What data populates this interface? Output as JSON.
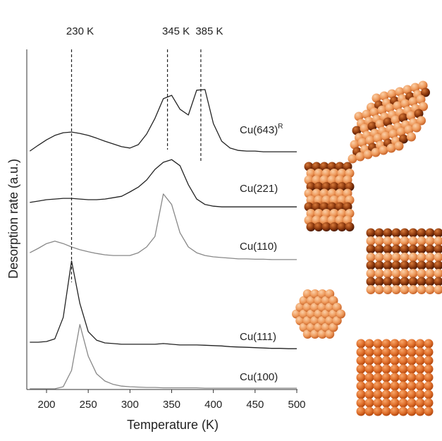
{
  "chart_data": {
    "type": "line",
    "xlabel": "Temperature (K)",
    "ylabel": "Desorption rate (a.u.)",
    "x": [
      180,
      190,
      200,
      210,
      220,
      230,
      240,
      250,
      260,
      270,
      280,
      290,
      300,
      310,
      320,
      330,
      340,
      350,
      360,
      370,
      380,
      390,
      400,
      410,
      420,
      430,
      440,
      450,
      460,
      470,
      480,
      490,
      500
    ],
    "series": [
      {
        "name": "Cu(643)",
        "superscript": "R",
        "color": "#222222",
        "values": [
          70.1,
          71.8,
          73.4,
          74.7,
          75.5,
          75.7,
          75.3,
          74.7,
          73.9,
          73.0,
          72.2,
          71.4,
          71.0,
          72.0,
          75.1,
          79.7,
          85.5,
          86.5,
          82.4,
          80.7,
          88.0,
          88.2,
          78.2,
          73.0,
          71.0,
          70.3,
          70.1,
          70.1,
          69.9,
          69.9,
          69.9,
          69.9,
          69.9
        ]
      },
      {
        "name": "Cu(221)",
        "color": "#222222",
        "values": [
          55.0,
          55.4,
          55.8,
          56.0,
          56.2,
          56.2,
          56.0,
          55.8,
          55.8,
          56.0,
          56.4,
          56.8,
          58.1,
          59.5,
          61.6,
          64.7,
          66.8,
          67.6,
          65.8,
          60.2,
          56.0,
          54.4,
          53.9,
          53.7,
          53.7,
          53.7,
          53.7,
          53.7,
          53.7,
          53.7,
          53.7,
          53.7,
          53.7
        ]
      },
      {
        "name": "Cu(110)",
        "color": "#888888",
        "values": [
          40.2,
          41.5,
          42.9,
          43.6,
          42.9,
          41.9,
          41.1,
          40.5,
          40.0,
          39.6,
          39.4,
          39.4,
          39.4,
          40.2,
          41.9,
          45.0,
          57.5,
          54.4,
          46.1,
          41.9,
          40.2,
          39.4,
          39.0,
          38.8,
          38.6,
          38.4,
          38.4,
          38.3,
          38.3,
          38.2,
          38.2,
          38.2,
          38.2
        ]
      },
      {
        "name": "Cu(111)",
        "color": "#222222",
        "values": [
          13.9,
          13.9,
          14.1,
          14.9,
          21.2,
          37.8,
          25.3,
          17.0,
          14.5,
          13.7,
          13.5,
          13.3,
          13.3,
          13.3,
          13.3,
          13.3,
          13.5,
          13.3,
          13.1,
          13.1,
          13.1,
          13.0,
          12.9,
          12.8,
          12.6,
          12.5,
          12.4,
          12.3,
          12.2,
          12.1,
          12.1,
          12.0,
          12.0
        ]
      },
      {
        "name": "Cu(100)",
        "color": "#888888",
        "values": [
          0.2,
          0.2,
          0.2,
          0.2,
          0.8,
          5.6,
          19.1,
          9.8,
          4.6,
          2.5,
          1.5,
          1.0,
          0.8,
          0.7,
          0.6,
          0.6,
          0.5,
          0.5,
          0.5,
          0.5,
          0.5,
          0.4,
          0.4,
          0.4,
          0.4,
          0.4,
          0.4,
          0.4,
          0.4,
          0.4,
          0.4,
          0.4,
          0.4
        ]
      }
    ],
    "annotations": [
      {
        "text": "230 K",
        "x": 230
      },
      {
        "text": "345 K",
        "x": 345
      },
      {
        "text": "385 K",
        "x": 385
      }
    ],
    "xlim": [
      176,
      500
    ],
    "xticks": [
      200,
      250,
      300,
      350,
      400,
      450,
      500
    ],
    "ylim": [
      0,
      100
    ]
  }
}
